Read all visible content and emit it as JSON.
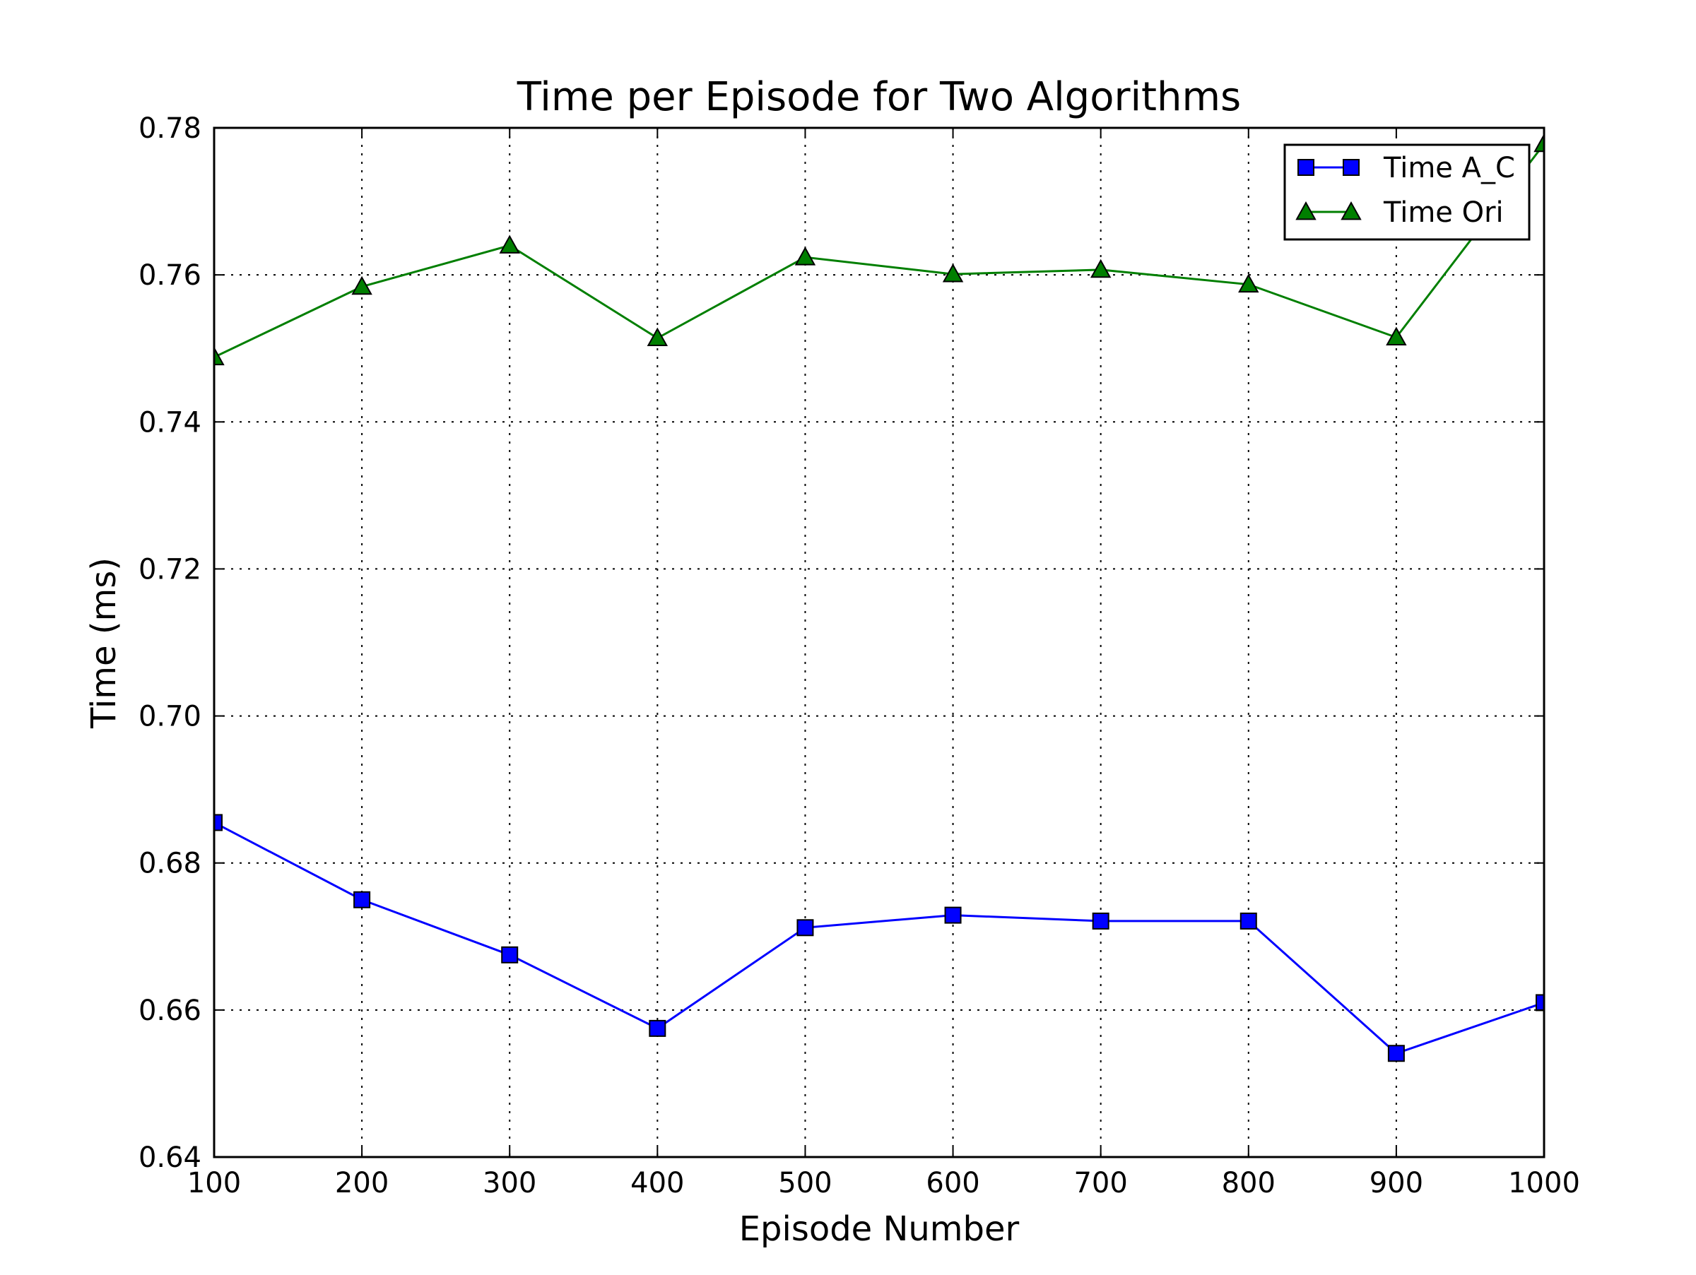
{
  "chart_data": {
    "type": "line",
    "title": "Time per Episode for Two Algorithms",
    "xlabel": "Episode Number",
    "ylabel": "Time (ms)",
    "xlim": [
      100,
      1000
    ],
    "ylim": [
      0.64,
      0.78
    ],
    "xticks": [
      100,
      200,
      300,
      400,
      500,
      600,
      700,
      800,
      900,
      1000
    ],
    "yticks": [
      0.64,
      0.66,
      0.68,
      0.7,
      0.72,
      0.74,
      0.76,
      0.78
    ],
    "ytick_labels": [
      "0.64",
      "0.66",
      "0.68",
      "0.70",
      "0.72",
      "0.74",
      "0.76",
      "0.78"
    ],
    "grid": true,
    "legend_position": "top-right",
    "x": [
      100,
      200,
      300,
      400,
      500,
      600,
      700,
      800,
      900,
      1000
    ],
    "series": [
      {
        "name": "Time A_C",
        "color": "#0000ff",
        "marker": "square",
        "values": [
          0.6855,
          0.675,
          0.6675,
          0.6575,
          0.6712,
          0.6729,
          0.6721,
          0.6721,
          0.6541,
          0.661
        ]
      },
      {
        "name": "Time Ori",
        "color": "#007f00",
        "marker": "triangle",
        "values": [
          0.7488,
          0.7584,
          0.764,
          0.7514,
          0.7624,
          0.7601,
          0.7607,
          0.7587,
          0.7515,
          0.7778
        ]
      }
    ]
  }
}
